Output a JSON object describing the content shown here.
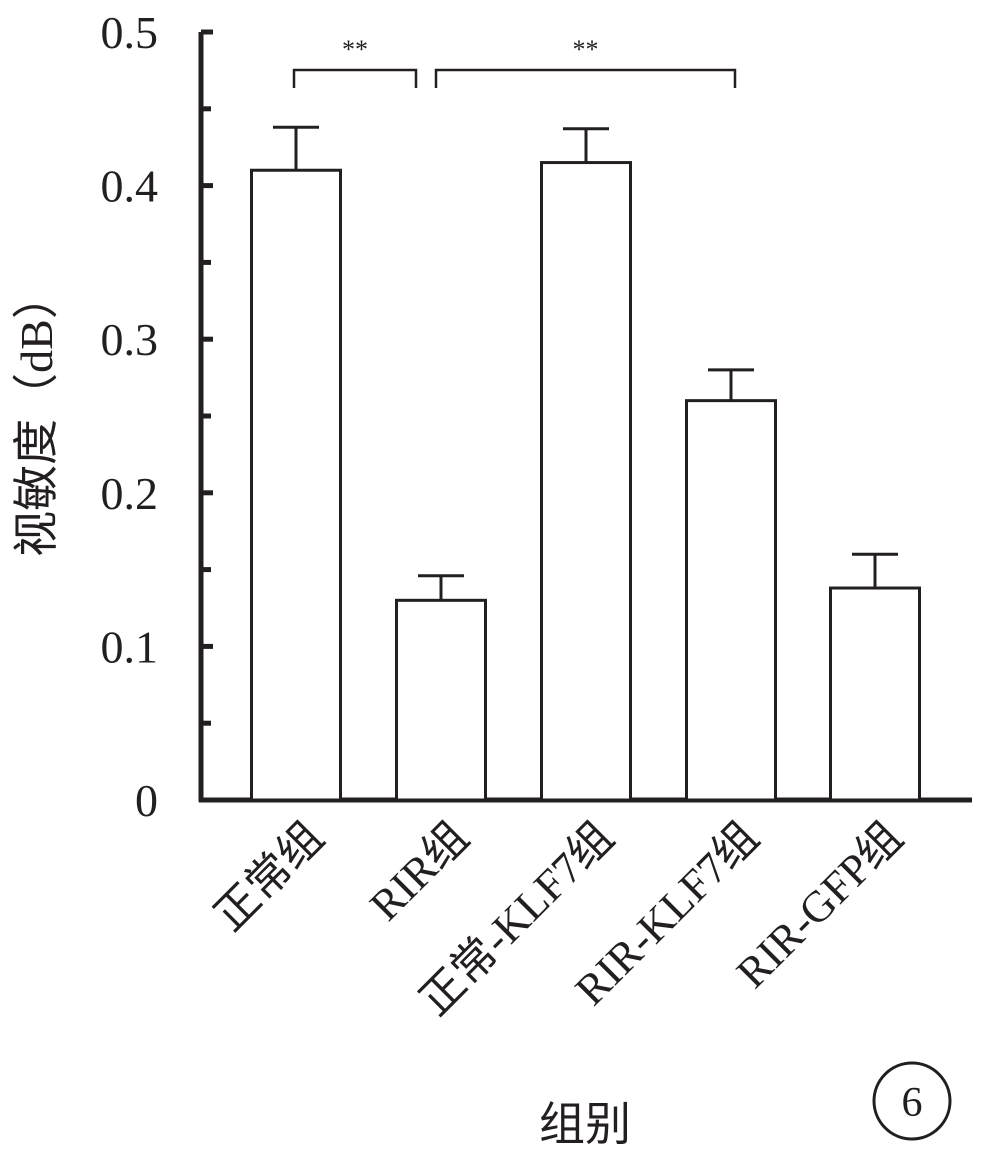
{
  "chart_data": {
    "type": "bar",
    "categories": [
      "正常组",
      "RIR组",
      "正常-KLF7组",
      "RIR-KLF7组",
      "RIR-GFP组"
    ],
    "values": [
      0.41,
      0.13,
      0.415,
      0.26,
      0.138
    ],
    "errors": [
      0.028,
      0.016,
      0.022,
      0.02,
      0.022
    ],
    "xlabel": "组别",
    "ylabel": "视敏度（dB）",
    "ylim": [
      0,
      0.5
    ],
    "yticks": [
      0,
      0.1,
      0.2,
      0.3,
      0.4,
      0.5
    ],
    "yticks_labels": [
      "0",
      "0.1",
      "0.2",
      "0.3",
      "0.4",
      "0.5"
    ],
    "significance": [
      {
        "from": 0,
        "to": 1,
        "label": "**"
      },
      {
        "from": 1,
        "to": 3,
        "label": "**"
      }
    ],
    "panel_label": "6",
    "grid": false,
    "legend": "none",
    "bar_fill": "#ffffff",
    "line_color": "#231f20"
  }
}
